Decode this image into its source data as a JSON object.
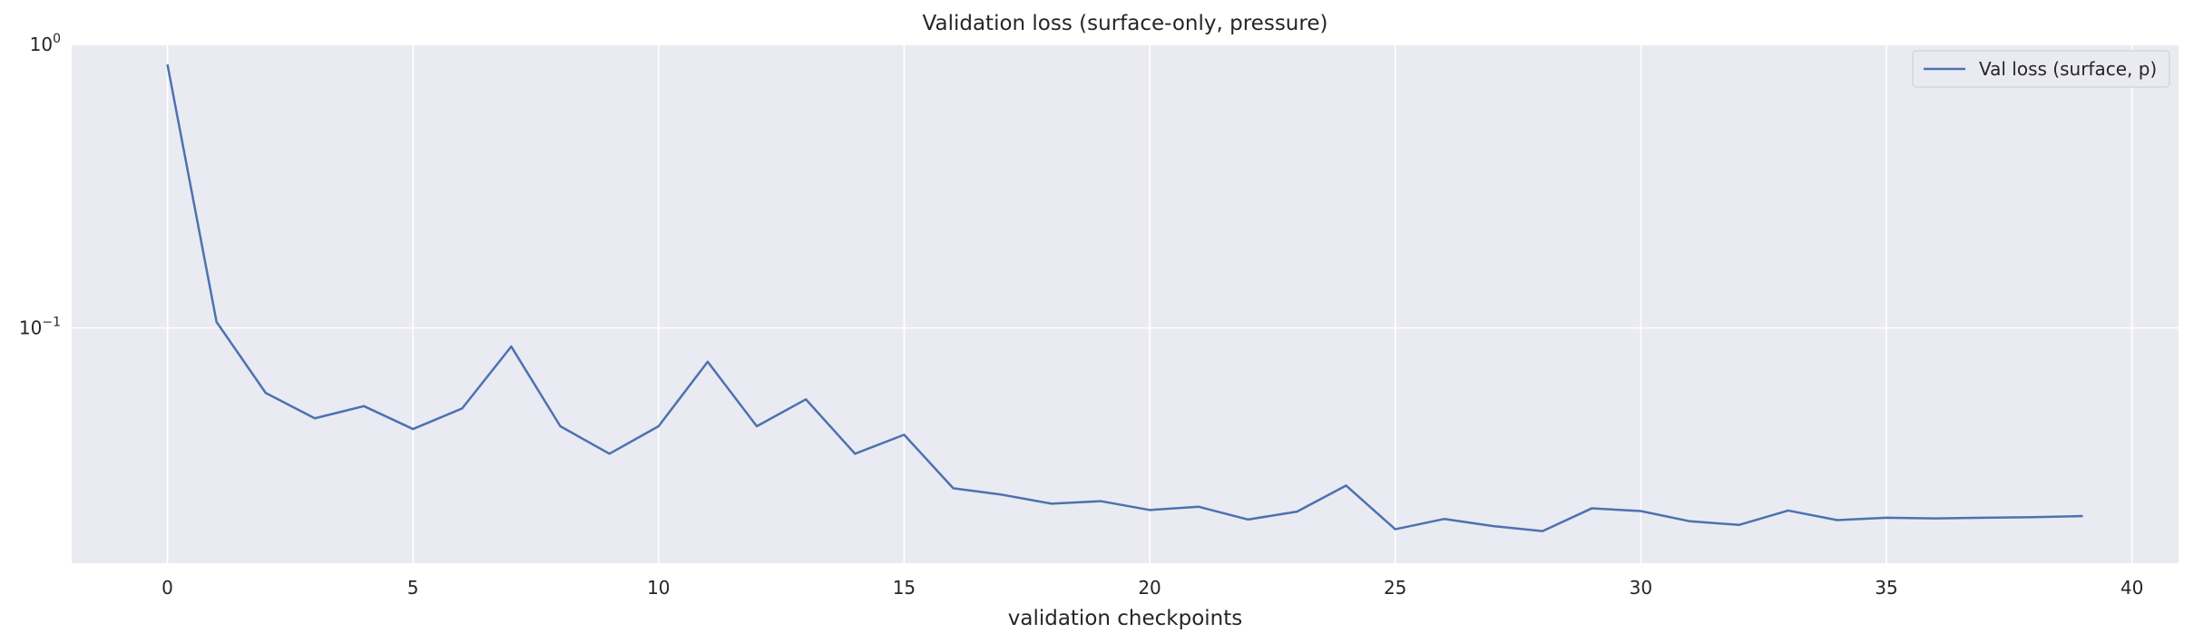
{
  "chart_data": {
    "type": "line",
    "title": "Validation loss (surface-only, pressure)",
    "xlabel": "validation checkpoints",
    "ylabel": "",
    "yscale": "log",
    "xlim": [
      -1.95,
      40.95
    ],
    "ylim": [
      0.0148,
      1.0
    ],
    "xticks": [
      0,
      5,
      10,
      15,
      20,
      25,
      30,
      35,
      40
    ],
    "yticks": [
      {
        "value": 1.0,
        "base": "10",
        "exp": "0"
      },
      {
        "value": 0.1,
        "base": "10",
        "exp": "−1"
      }
    ],
    "grid": true,
    "legend_position": "top-right",
    "series": [
      {
        "name": "Val loss (surface, p)",
        "color": "#4c72b0",
        "x": [
          0,
          1,
          2,
          3,
          4,
          5,
          6,
          7,
          8,
          9,
          10,
          11,
          12,
          13,
          14,
          15,
          16,
          17,
          18,
          19,
          20,
          21,
          22,
          23,
          24,
          25,
          26,
          27,
          28,
          29,
          30,
          31,
          32,
          33,
          34,
          35,
          36,
          37,
          38,
          39
        ],
        "y": [
          0.85,
          0.105,
          0.059,
          0.048,
          0.053,
          0.044,
          0.052,
          0.086,
          0.045,
          0.036,
          0.045,
          0.076,
          0.045,
          0.056,
          0.036,
          0.042,
          0.0272,
          0.0258,
          0.024,
          0.0245,
          0.0228,
          0.0234,
          0.0211,
          0.0225,
          0.0278,
          0.0195,
          0.0212,
          0.02,
          0.0192,
          0.0231,
          0.0226,
          0.0208,
          0.0202,
          0.0227,
          0.021,
          0.0214,
          0.0213,
          0.0214,
          0.0215,
          0.0217
        ]
      }
    ]
  }
}
